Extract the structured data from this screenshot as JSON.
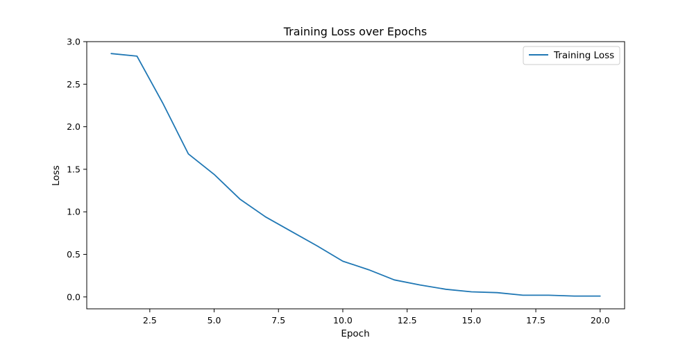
{
  "chart_data": {
    "type": "line",
    "title": "Training Loss over Epochs",
    "xlabel": "Epoch",
    "ylabel": "Loss",
    "xlim": [
      0.05,
      20.95
    ],
    "ylim": [
      -0.14,
      3.0
    ],
    "x_ticks": [
      2.5,
      5.0,
      7.5,
      10.0,
      12.5,
      15.0,
      17.5,
      20.0
    ],
    "x_tick_labels": [
      "2.5",
      "5.0",
      "7.5",
      "10.0",
      "12.5",
      "15.0",
      "17.5",
      "20.0"
    ],
    "y_ticks": [
      0.0,
      0.5,
      1.0,
      1.5,
      2.0,
      2.5,
      3.0
    ],
    "y_tick_labels": [
      "0.0",
      "0.5",
      "1.0",
      "1.5",
      "2.0",
      "2.5",
      "3.0"
    ],
    "grid": false,
    "legend_position": "top-right",
    "series": [
      {
        "name": "Training Loss",
        "color": "#1f77b4",
        "x": [
          1,
          2,
          3,
          4,
          5,
          6,
          7,
          8,
          9,
          10,
          11,
          12,
          13,
          14,
          15,
          16,
          17,
          18,
          19,
          20
        ],
        "values": [
          2.86,
          2.83,
          2.28,
          1.68,
          1.44,
          1.15,
          0.94,
          0.77,
          0.6,
          0.42,
          0.32,
          0.2,
          0.14,
          0.09,
          0.06,
          0.05,
          0.02,
          0.02,
          0.01,
          0.01
        ]
      }
    ]
  }
}
